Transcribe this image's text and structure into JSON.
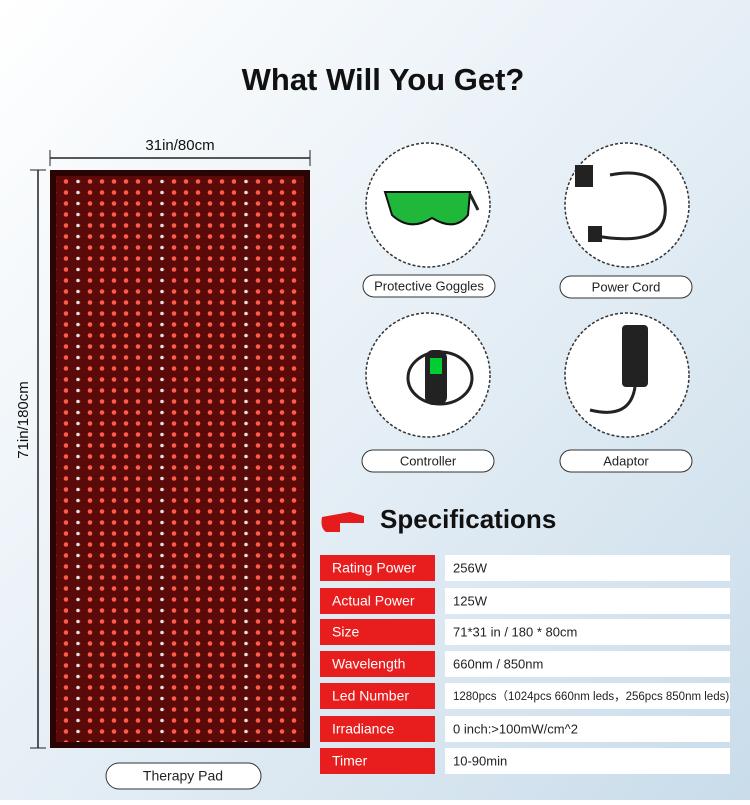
{
  "header": {
    "title": "What Will You Get?"
  },
  "pad": {
    "width_label": "31in/80cm",
    "height_label": "71in/180cm",
    "label": "Therapy Pad"
  },
  "items": [
    "Protective Goggles",
    "Power Cord",
    "Controller",
    "Adaptor"
  ],
  "specs": {
    "title": "Specifications",
    "rows": [
      [
        "Rating Power",
        "256W"
      ],
      [
        "Actual Power",
        "125W"
      ],
      [
        "Size",
        "71*31 in / 180 * 80cm"
      ],
      [
        "Wavelength",
        "660nm / 850nm"
      ],
      [
        "Led Number",
        "1280pcs（1024pcs 660nm leds，256pcs 850nm leds)"
      ],
      [
        "Irradiance",
        "0 inch:>100mW/cm^2"
      ],
      [
        "Timer",
        "10-90min"
      ]
    ]
  }
}
